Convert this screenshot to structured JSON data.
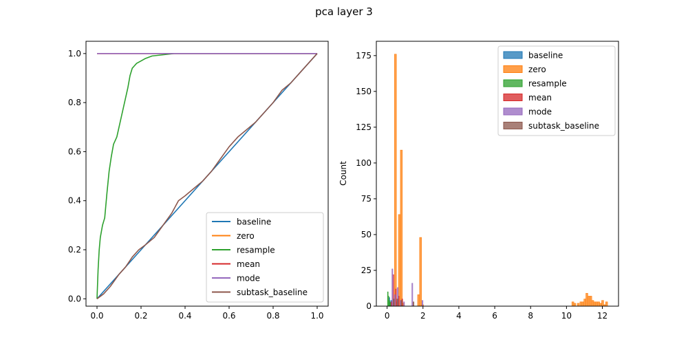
{
  "figure": {
    "suptitle": "pca layer 3"
  },
  "chart_data": [
    {
      "type": "line",
      "xlim": [
        -0.05,
        1.05
      ],
      "ylim": [
        -0.03,
        1.05
      ],
      "xticks": [
        0.0,
        0.2,
        0.4,
        0.6,
        0.8,
        1.0
      ],
      "yticks": [
        0.0,
        0.2,
        0.4,
        0.6,
        0.8,
        1.0
      ],
      "xtick_labels": [
        "0.0",
        "0.2",
        "0.4",
        "0.6",
        "0.8",
        "1.0"
      ],
      "ytick_labels": [
        "0.0",
        "0.2",
        "0.4",
        "0.6",
        "0.8",
        "1.0"
      ],
      "legend_position": "lower-right",
      "series": [
        {
          "name": "baseline",
          "color": "#1f77b4",
          "points": [
            [
              0,
              0
            ],
            [
              1,
              1
            ]
          ]
        },
        {
          "name": "zero",
          "color": "#ff7f0e",
          "points": [
            [
              0,
              1
            ],
            [
              1,
              1
            ]
          ]
        },
        {
          "name": "resample",
          "color": "#2ca02c",
          "points": [
            [
              0,
              0
            ],
            [
              0.005,
              0.12
            ],
            [
              0.01,
              0.2
            ],
            [
              0.015,
              0.25
            ],
            [
              0.025,
              0.3
            ],
            [
              0.035,
              0.33
            ],
            [
              0.045,
              0.43
            ],
            [
              0.055,
              0.52
            ],
            [
              0.065,
              0.58
            ],
            [
              0.075,
              0.63
            ],
            [
              0.09,
              0.66
            ],
            [
              0.1,
              0.7
            ],
            [
              0.11,
              0.74
            ],
            [
              0.12,
              0.78
            ],
            [
              0.13,
              0.82
            ],
            [
              0.14,
              0.86
            ],
            [
              0.15,
              0.91
            ],
            [
              0.16,
              0.94
            ],
            [
              0.17,
              0.95
            ],
            [
              0.18,
              0.96
            ],
            [
              0.19,
              0.965
            ],
            [
              0.2,
              0.97
            ],
            [
              0.22,
              0.98
            ],
            [
              0.25,
              0.99
            ],
            [
              0.3,
              0.995
            ],
            [
              0.35,
              1.0
            ],
            [
              1.0,
              1.0
            ]
          ]
        },
        {
          "name": "mean",
          "color": "#d62728",
          "points": [
            [
              0,
              1
            ],
            [
              1,
              1
            ]
          ]
        },
        {
          "name": "mode",
          "color": "#9467bd",
          "points": [
            [
              0,
              1
            ],
            [
              1,
              1
            ]
          ]
        },
        {
          "name": "subtask_baseline",
          "color": "#8c564b",
          "points": [
            [
              0,
              0
            ],
            [
              0.03,
              0.02
            ],
            [
              0.06,
              0.05
            ],
            [
              0.1,
              0.1
            ],
            [
              0.13,
              0.13
            ],
            [
              0.16,
              0.17
            ],
            [
              0.19,
              0.2
            ],
            [
              0.22,
              0.22
            ],
            [
              0.26,
              0.25
            ],
            [
              0.3,
              0.3
            ],
            [
              0.34,
              0.35
            ],
            [
              0.37,
              0.4
            ],
            [
              0.4,
              0.42
            ],
            [
              0.44,
              0.45
            ],
            [
              0.48,
              0.48
            ],
            [
              0.52,
              0.52
            ],
            [
              0.56,
              0.57
            ],
            [
              0.6,
              0.62
            ],
            [
              0.64,
              0.66
            ],
            [
              0.68,
              0.69
            ],
            [
              0.72,
              0.72
            ],
            [
              0.76,
              0.76
            ],
            [
              0.8,
              0.8
            ],
            [
              0.84,
              0.85
            ],
            [
              0.88,
              0.88
            ],
            [
              0.92,
              0.92
            ],
            [
              0.96,
              0.96
            ],
            [
              1.0,
              1.0
            ]
          ]
        }
      ]
    },
    {
      "type": "histogram",
      "ylabel": "Count",
      "xlim": [
        -0.6,
        12.9
      ],
      "ylim": [
        0,
        185
      ],
      "xticks": [
        0,
        2,
        4,
        6,
        8,
        10,
        12
      ],
      "yticks": [
        0,
        25,
        50,
        75,
        100,
        125,
        150,
        175
      ],
      "xtick_labels": [
        "0",
        "2",
        "4",
        "6",
        "8",
        "10",
        "12"
      ],
      "ytick_labels": [
        "0",
        "25",
        "50",
        "75",
        "100",
        "125",
        "150",
        "175"
      ],
      "legend_position": "upper-right",
      "series": [
        {
          "name": "baseline",
          "color": "#1f77b4",
          "bins": [
            [
              0.1,
              0.15,
              6
            ],
            [
              0.2,
              0.25,
              4
            ]
          ]
        },
        {
          "name": "zero",
          "color": "#ff7f0e",
          "bins": [
            [
              0.3,
              0.41,
              2
            ],
            [
              0.41,
              0.52,
              176
            ],
            [
              0.52,
              0.63,
              3
            ],
            [
              0.63,
              0.74,
              64
            ],
            [
              0.74,
              0.85,
              109
            ],
            [
              0.85,
              0.96,
              2
            ],
            [
              1.7,
              1.81,
              8
            ],
            [
              1.81,
              1.92,
              48
            ],
            [
              1.92,
              2.03,
              1
            ],
            [
              10.3,
              10.41,
              3
            ],
            [
              10.41,
              10.52,
              2
            ],
            [
              10.6,
              10.71,
              2
            ],
            [
              10.75,
              10.86,
              3
            ],
            [
              10.86,
              10.97,
              3
            ],
            [
              10.97,
              11.08,
              5
            ],
            [
              11.08,
              11.19,
              9
            ],
            [
              11.19,
              11.3,
              7
            ],
            [
              11.3,
              11.41,
              7
            ],
            [
              11.41,
              11.52,
              4
            ],
            [
              11.52,
              11.63,
              3
            ],
            [
              11.63,
              11.74,
              3
            ],
            [
              11.74,
              11.85,
              3
            ],
            [
              11.85,
              11.96,
              2
            ],
            [
              11.96,
              12.07,
              4
            ],
            [
              12.07,
              12.18,
              1
            ],
            [
              12.18,
              12.29,
              3
            ]
          ]
        },
        {
          "name": "resample",
          "color": "#2ca02c",
          "bins": [
            [
              0.02,
              0.06,
              10
            ],
            [
              0.06,
              0.1,
              7
            ],
            [
              0.1,
              0.14,
              4
            ],
            [
              0.14,
              0.18,
              3
            ],
            [
              0.18,
              0.22,
              2
            ]
          ]
        },
        {
          "name": "mean",
          "color": "#d62728",
          "bins": [
            [
              0.22,
              0.27,
              3
            ],
            [
              0.32,
              0.37,
              22
            ],
            [
              0.47,
              0.52,
              12
            ],
            [
              0.62,
              0.67,
              7
            ],
            [
              0.82,
              0.87,
              5
            ]
          ]
        },
        {
          "name": "mode",
          "color": "#9467bd",
          "bins": [
            [
              0.27,
              0.32,
              26
            ],
            [
              0.42,
              0.47,
              8
            ],
            [
              0.57,
              0.62,
              13
            ],
            [
              0.72,
              0.77,
              4
            ],
            [
              0.92,
              0.97,
              3
            ],
            [
              1.38,
              1.43,
              16
            ],
            [
              1.95,
              2.0,
              4
            ]
          ]
        },
        {
          "name": "subtask_baseline",
          "color": "#8c564b",
          "bins": [
            [
              0.35,
              0.4,
              5
            ],
            [
              0.55,
              0.6,
              5
            ],
            [
              0.78,
              0.83,
              4
            ],
            [
              1.45,
              1.5,
              3
            ]
          ]
        }
      ]
    }
  ]
}
